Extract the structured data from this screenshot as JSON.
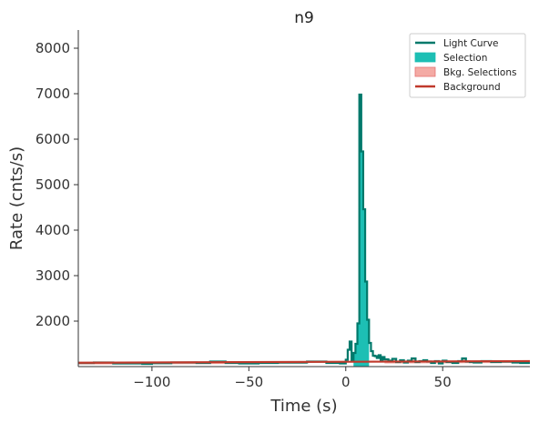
{
  "chart_data": {
    "type": "line",
    "title": "n9",
    "xlabel": "Time (s)",
    "ylabel": "Rate (cnts/s)",
    "xlim": [
      -138,
      95
    ],
    "ylim": [
      1000,
      8400
    ],
    "xticks": [
      -100,
      -50,
      0,
      50
    ],
    "xtick_labels": [
      "−100",
      "−50",
      "0",
      "50"
    ],
    "yticks": [
      2000,
      3000,
      4000,
      5000,
      6000,
      7000,
      8000
    ],
    "ytick_labels": [
      "2000",
      "3000",
      "4000",
      "5000",
      "6000",
      "7000",
      "8000"
    ],
    "legend_position": "top-right",
    "grid": false,
    "colors": {
      "light_curve": "#00796b",
      "selection": "#1dbfb4",
      "bkg_selection": "#f4aaa4",
      "background": "#c0392b"
    },
    "series": [
      {
        "name": "Light Curve",
        "type": "step",
        "x": [
          -138,
          -130,
          -120,
          -105,
          -100,
          -90,
          -77,
          -70,
          -62,
          -55,
          -45,
          -35,
          -20,
          -10,
          -3,
          0,
          1,
          2,
          3,
          4,
          5,
          6,
          7,
          8,
          9,
          10,
          11,
          12,
          13,
          14,
          15,
          16,
          17,
          18,
          19,
          20,
          22,
          24,
          26,
          28,
          30,
          32,
          34,
          36,
          38,
          40,
          42,
          44,
          46,
          48,
          50,
          52,
          55,
          58,
          60,
          62,
          64,
          66,
          70,
          75,
          80,
          86,
          90,
          95
        ],
        "y": [
          1080,
          1090,
          1070,
          1060,
          1075,
          1090,
          1080,
          1110,
          1080,
          1070,
          1080,
          1090,
          1110,
          1080,
          1070,
          1150,
          1370,
          1550,
          1120,
          1300,
          1500,
          1950,
          6980,
          5730,
          4460,
          2870,
          2030,
          1520,
          1340,
          1240,
          1230,
          1190,
          1250,
          1150,
          1210,
          1160,
          1130,
          1170,
          1100,
          1140,
          1090,
          1130,
          1180,
          1100,
          1120,
          1140,
          1110,
          1080,
          1120,
          1070,
          1130,
          1100,
          1080,
          1120,
          1180,
          1110,
          1100,
          1090,
          1120,
          1100,
          1110,
          1090,
          1080,
          1080
        ]
      },
      {
        "name": "Selection",
        "x_range": [
          4,
          12
        ]
      },
      {
        "name": "Bkg. Selections",
        "x_ranges": [
          [
            -138,
            -20
          ],
          [
            20,
            95
          ]
        ]
      },
      {
        "name": "Background",
        "x": [
          -138,
          95
        ],
        "y": [
          1085,
          1120
        ]
      }
    ]
  }
}
